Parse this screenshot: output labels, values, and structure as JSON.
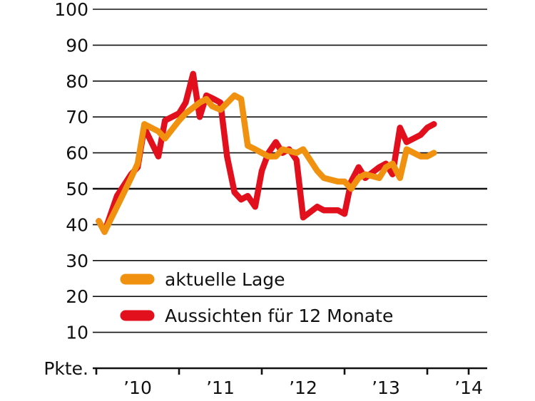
{
  "chart_data": {
    "type": "line",
    "title": "",
    "xlabel": "",
    "ylabel": "Pkte.",
    "ylim": [
      0,
      100
    ],
    "y_ticks": [
      10,
      20,
      30,
      40,
      50,
      60,
      70,
      80,
      90,
      100
    ],
    "x_range": [
      2009.5,
      2014.0
    ],
    "x_ticks": [
      {
        "x": 2010.0,
        "label": "’10"
      },
      {
        "x": 2011.0,
        "label": "’11"
      },
      {
        "x": 2012.0,
        "label": "’12"
      },
      {
        "x": 2013.0,
        "label": "’13"
      },
      {
        "x": 2014.0,
        "label": "’14"
      }
    ],
    "grid": true,
    "legend_position": "bottom-left",
    "series": [
      {
        "name": "aktuelle Lage",
        "color": "#F0920F",
        "x": [
          2009.53,
          2009.6,
          2009.75,
          2009.92,
          2010.0,
          2010.08,
          2010.25,
          2010.33,
          2010.5,
          2010.58,
          2010.75,
          2010.83,
          2010.9,
          2011.0,
          2011.17,
          2011.25,
          2011.33,
          2011.42,
          2011.5,
          2011.58,
          2011.67,
          2011.75,
          2011.92,
          2012.0,
          2012.17,
          2012.25,
          2012.42,
          2012.5,
          2012.58,
          2012.67,
          2012.75,
          2012.92,
          2013.0,
          2013.08,
          2013.17,
          2013.25,
          2013.42,
          2013.5,
          2013.58
        ],
        "y": [
          41,
          38,
          45,
          53,
          57,
          68,
          66,
          64,
          69,
          71,
          74,
          75,
          73,
          72,
          76,
          75,
          62,
          61,
          60,
          59,
          59,
          61,
          60,
          61,
          55,
          53,
          52,
          52,
          50,
          53,
          54,
          53,
          56,
          57,
          53,
          61,
          59,
          59,
          60
        ]
      },
      {
        "name": "Aussichten für 12 Monate",
        "color": "#E2101D",
        "x": [
          2009.53,
          2009.6,
          2009.75,
          2009.92,
          2010.0,
          2010.08,
          2010.25,
          2010.33,
          2010.5,
          2010.58,
          2010.67,
          2010.75,
          2010.83,
          2010.92,
          2011.0,
          2011.08,
          2011.17,
          2011.25,
          2011.33,
          2011.42,
          2011.5,
          2011.58,
          2011.67,
          2011.75,
          2011.83,
          2011.92,
          2012.0,
          2012.17,
          2012.25,
          2012.42,
          2012.5,
          2012.58,
          2012.67,
          2012.75,
          2012.92,
          2013.0,
          2013.08,
          2013.17,
          2013.25,
          2013.42,
          2013.5,
          2013.58
        ],
        "y": [
          41,
          38,
          48,
          54,
          56,
          67,
          59,
          69,
          71,
          74,
          82,
          70,
          76,
          75,
          74,
          59,
          49,
          47,
          48,
          45,
          55,
          60,
          63,
          60,
          61,
          58,
          42,
          45,
          44,
          44,
          43,
          52,
          56,
          53,
          56,
          57,
          54,
          67,
          63,
          65,
          67,
          68
        ]
      }
    ]
  }
}
